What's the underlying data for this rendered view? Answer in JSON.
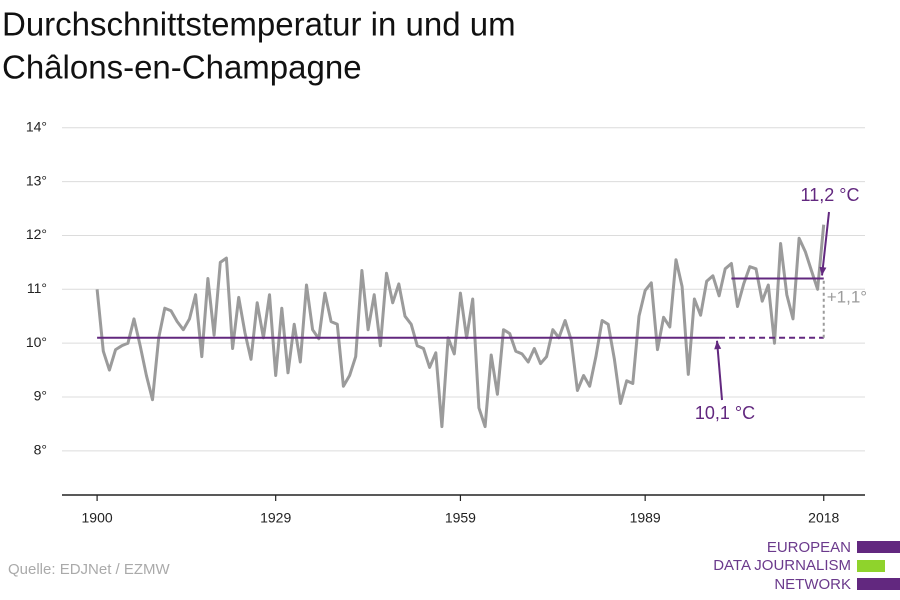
{
  "chart_data": {
    "type": "line",
    "title": [
      "Durchschnittstemperatur in und um",
      "Châlons-en-Champagne"
    ],
    "source": "Quelle: EDJNet / EZMW",
    "logo": [
      "EUROPEAN",
      "DATA JOURNALISM",
      "NETWORK"
    ],
    "x": [
      1900,
      1901,
      1902,
      1903,
      1904,
      1905,
      1906,
      1907,
      1908,
      1909,
      1910,
      1911,
      1912,
      1913,
      1914,
      1915,
      1916,
      1917,
      1918,
      1919,
      1920,
      1921,
      1922,
      1923,
      1924,
      1925,
      1926,
      1927,
      1928,
      1929,
      1930,
      1931,
      1932,
      1933,
      1934,
      1935,
      1936,
      1937,
      1938,
      1939,
      1940,
      1941,
      1942,
      1943,
      1944,
      1945,
      1946,
      1947,
      1948,
      1949,
      1950,
      1951,
      1952,
      1953,
      1954,
      1955,
      1956,
      1957,
      1958,
      1959,
      1960,
      1961,
      1962,
      1963,
      1964,
      1965,
      1966,
      1967,
      1968,
      1969,
      1970,
      1971,
      1972,
      1973,
      1974,
      1975,
      1976,
      1977,
      1978,
      1979,
      1980,
      1981,
      1982,
      1983,
      1984,
      1985,
      1986,
      1987,
      1988,
      1989,
      1990,
      1991,
      1992,
      1993,
      1994,
      1995,
      1996,
      1997,
      1998,
      1999,
      2000,
      2001,
      2002,
      2003,
      2004,
      2005,
      2006,
      2007,
      2008,
      2009,
      2010,
      2011,
      2012,
      2013,
      2014,
      2015,
      2016,
      2017,
      2018
    ],
    "series": [
      {
        "color": "#9b9b9b",
        "values": [
          11.0,
          9.85,
          9.5,
          9.88,
          9.95,
          10.0,
          10.45,
          9.95,
          9.4,
          8.95,
          10.1,
          10.65,
          10.6,
          10.4,
          10.25,
          10.45,
          10.9,
          9.75,
          11.2,
          10.15,
          11.5,
          11.58,
          9.9,
          10.85,
          10.2,
          9.7,
          10.75,
          10.1,
          10.9,
          9.4,
          10.65,
          9.45,
          10.35,
          9.65,
          11.08,
          10.25,
          10.08,
          10.93,
          10.4,
          10.35,
          9.2,
          9.4,
          9.75,
          11.35,
          10.25,
          10.9,
          9.95,
          11.3,
          10.75,
          11.1,
          10.5,
          10.35,
          9.95,
          9.9,
          9.55,
          9.82,
          8.45,
          10.1,
          9.8,
          10.93,
          10.1,
          10.82,
          8.8,
          8.45,
          9.78,
          9.05,
          10.25,
          10.18,
          9.85,
          9.8,
          9.65,
          9.9,
          9.62,
          9.75,
          10.25,
          10.1,
          10.42,
          10.05,
          9.12,
          9.4,
          9.2,
          9.75,
          10.42,
          10.35,
          9.7,
          8.88,
          9.3,
          9.25,
          10.5,
          10.98,
          11.12,
          9.88,
          10.48,
          10.3,
          11.55,
          11.05,
          9.42,
          10.82,
          10.52,
          11.15,
          11.25,
          10.88,
          11.38,
          11.48,
          10.68,
          11.1,
          11.42,
          11.38,
          10.78,
          11.08,
          10.0,
          11.85,
          10.9,
          10.45,
          11.95,
          11.7,
          11.35,
          11.0,
          12.2
        ]
      }
    ],
    "reference_lines": [
      {
        "label": "10,1 °C",
        "value": 10.1,
        "solid": [
          1900,
          2001
        ],
        "dashed": [
          2001,
          2018
        ],
        "color": "#62287f"
      },
      {
        "label": "11,2 °C",
        "value": 11.2,
        "solid": [
          2003,
          2018
        ],
        "color": "#62287f"
      }
    ],
    "difference": {
      "label": "+1,1°",
      "value": 1.1,
      "x": 2018,
      "color": "#9b9b9b"
    },
    "xlim": [
      1894.3,
      2024.7
    ],
    "xticks": [
      1900,
      1929,
      1959,
      1989,
      2018
    ],
    "ylim": [
      7.18,
      14.2
    ],
    "yticks": [
      {
        "value": 8,
        "label": "8°"
      },
      {
        "value": 9,
        "label": "9°"
      },
      {
        "value": 10,
        "label": "10°"
      },
      {
        "value": 11,
        "label": "11°"
      },
      {
        "value": 12,
        "label": "12°"
      },
      {
        "value": 13,
        "label": "13°"
      },
      {
        "value": 14,
        "label": "14°"
      }
    ],
    "grid": true
  }
}
